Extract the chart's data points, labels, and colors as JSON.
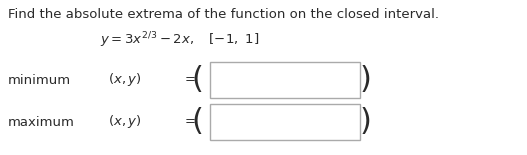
{
  "title_text": "Find the absolute extrema of the function on the closed interval.",
  "min_label": "minimum",
  "max_label": "maximum",
  "bg_color": "#ffffff",
  "text_color": "#2a2a2a",
  "box_color": "#aaaaaa",
  "title_fontsize": 9.5,
  "body_fontsize": 9.5,
  "paren_fontsize": 22,
  "fig_width": 5.27,
  "fig_height": 1.55,
  "dpi": 100
}
